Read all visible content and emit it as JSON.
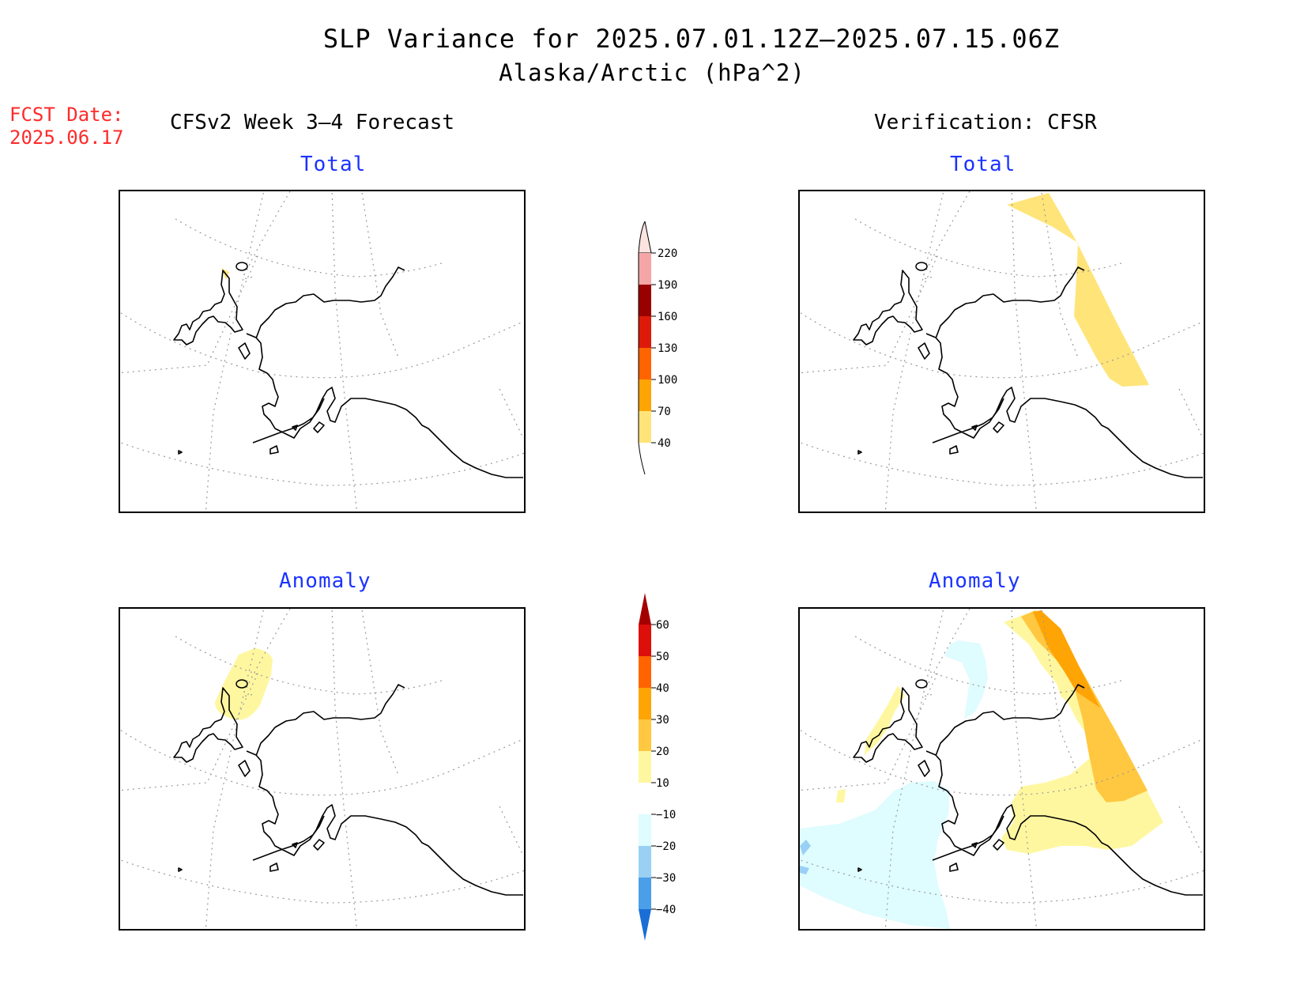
{
  "title": "SLP Variance for 2025.07.01.12Z–2025.07.15.06Z",
  "subtitle": "Alaska/Arctic (hPa^2)",
  "fcst_date_label": "FCST Date:",
  "fcst_date_value": "2025.06.17",
  "left_column_header": "CFSv2 Week 3–4 Forecast",
  "right_column_header": "Verification: CFSR",
  "panels": {
    "top_left_title": "Total",
    "top_right_title": "Total",
    "bottom_left_title": "Anomaly",
    "bottom_right_title": "Anomaly"
  },
  "colorbar_total": {
    "labels": [
      "220",
      "190",
      "160",
      "130",
      "100",
      "70",
      "40"
    ],
    "colors": [
      "#fbe3e0",
      "#f4a6a6",
      "#990000",
      "#dd1a0a",
      "#ff6400",
      "#ffa405",
      "#ffe47a"
    ]
  },
  "colorbar_anomaly": {
    "labels": [
      "60",
      "50",
      "40",
      "30",
      "20",
      "10",
      "−10",
      "−20",
      "−30",
      "−40"
    ],
    "colors": [
      "#a50000",
      "#dc0f0a",
      "#ff6400",
      "#ffa405",
      "#ffc840",
      "#fff7a0",
      "#ffffff",
      "#dffcff",
      "#9ad0f4",
      "#4a9fe8",
      "#1a6ed6"
    ]
  }
}
